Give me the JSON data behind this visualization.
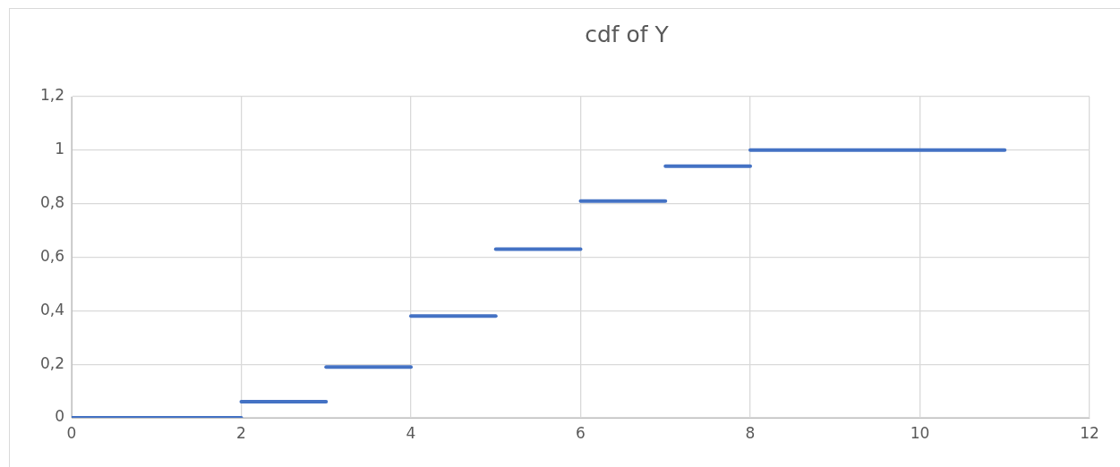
{
  "chart_data": {
    "type": "line",
    "title": "cdf of Y",
    "series": [
      {
        "color": "#4472c4",
        "x": [
          0,
          2
        ],
        "values": [
          0,
          0
        ]
      },
      {
        "color": "#4472c4",
        "x": [
          2,
          3
        ],
        "values": [
          0.06,
          0.06
        ]
      },
      {
        "color": "#4472c4",
        "x": [
          3,
          4
        ],
        "values": [
          0.19,
          0.19
        ]
      },
      {
        "color": "#4472c4",
        "x": [
          4,
          5
        ],
        "values": [
          0.38,
          0.38
        ]
      },
      {
        "color": "#4472c4",
        "x": [
          5,
          6
        ],
        "values": [
          0.63,
          0.63
        ]
      },
      {
        "color": "#4472c4",
        "x": [
          6,
          7
        ],
        "values": [
          0.81,
          0.81
        ]
      },
      {
        "color": "#4472c4",
        "x": [
          7,
          8
        ],
        "values": [
          0.94,
          0.94
        ]
      },
      {
        "color": "#4472c4",
        "x": [
          8,
          11
        ],
        "values": [
          1,
          1
        ]
      }
    ],
    "xlim": [
      0,
      12
    ],
    "xticks": [
      0,
      2,
      4,
      6,
      8,
      10,
      12
    ],
    "ylim": [
      0,
      1.2
    ],
    "yticks": [
      0,
      {
        "value": 0.2,
        "label": "0,2"
      },
      {
        "value": 0.4,
        "label": "0,4"
      },
      {
        "value": 0.6,
        "label": "0,6"
      },
      {
        "value": 0.8,
        "label": "0,8"
      },
      1,
      {
        "value": 1.2,
        "label": "1,2"
      }
    ],
    "grid": true,
    "legend": false,
    "marker": "none",
    "line_style": "solid"
  }
}
